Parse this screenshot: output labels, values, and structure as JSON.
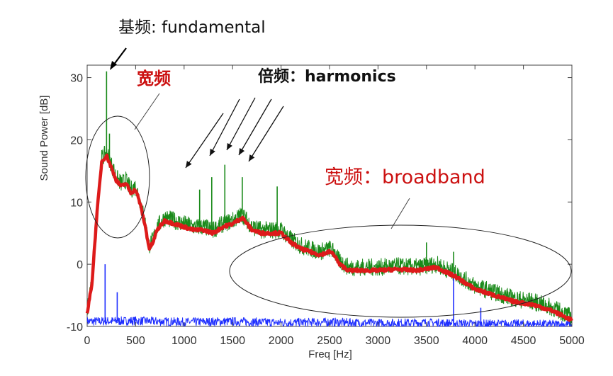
{
  "chart_data": {
    "type": "line",
    "xlabel": "Freq [Hz]",
    "ylabel": "Sound Power [dB]",
    "xlim": [
      0,
      5000
    ],
    "ylim": [
      -10,
      32
    ],
    "x_ticks": [
      0,
      500,
      1000,
      1500,
      2000,
      2500,
      3000,
      3500,
      4000,
      4500,
      5000
    ],
    "y_ticks": [
      -10,
      0,
      10,
      20,
      30
    ],
    "grid": false,
    "colors": {
      "raw": "#1a8a1a",
      "smooth": "#dd1a1a",
      "noise": "#1f2fff"
    },
    "series": [
      {
        "key": "smooth",
        "x": [
          0,
          50,
          100,
          150,
          200,
          250,
          300,
          350,
          400,
          450,
          500,
          550,
          600,
          640,
          680,
          720,
          800,
          900,
          1000,
          1100,
          1200,
          1300,
          1400,
          1500,
          1600,
          1700,
          1800,
          1900,
          2000,
          2100,
          2200,
          2300,
          2400,
          2500,
          2550,
          2600,
          2700,
          2800,
          3000,
          3200,
          3400,
          3600,
          3800,
          3900,
          4000,
          4200,
          4400,
          4600,
          4800,
          5000
        ],
        "y": [
          -8,
          -3,
          8,
          16.5,
          17.5,
          15.5,
          13.5,
          12.5,
          13,
          11.5,
          12,
          9.5,
          6,
          2.5,
          3.5,
          5.5,
          7,
          6.5,
          6,
          5.5,
          5.5,
          5,
          6,
          6.5,
          7.5,
          5.5,
          5,
          5,
          5,
          3.5,
          2.5,
          2,
          1.5,
          2,
          1.5,
          0,
          -1,
          -1,
          -1,
          -0.8,
          -1,
          -0.5,
          -2,
          -3,
          -4,
          -5,
          -6,
          -6.5,
          -7.5,
          -9
        ]
      },
      {
        "key": "raw",
        "x": [
          0,
          50,
          100,
          150,
          200,
          250,
          300,
          350,
          400,
          450,
          500,
          550,
          600,
          640,
          680,
          720,
          800,
          900,
          1000,
          1100,
          1200,
          1300,
          1400,
          1500,
          1600,
          1700,
          1800,
          1900,
          2000,
          2100,
          2200,
          2300,
          2400,
          2500,
          2550,
          2600,
          2700,
          2800,
          3000,
          3200,
          3400,
          3600,
          3800,
          3900,
          4000,
          4200,
          4400,
          4600,
          4800,
          5000
        ],
        "y": [
          -7.5,
          -2.5,
          8.5,
          17,
          18,
          16,
          14,
          13,
          13.5,
          12,
          12.5,
          10,
          6.5,
          3,
          4,
          6,
          7.5,
          7,
          6.5,
          6,
          6,
          5.5,
          6.5,
          7,
          8,
          6,
          5.5,
          5.5,
          5.5,
          4,
          3,
          2.5,
          2,
          2.5,
          2,
          0.5,
          -0.5,
          -0.5,
          -0.5,
          -0.3,
          -0.5,
          0,
          -1.5,
          -2.5,
          -3.5,
          -4.5,
          -5.5,
          -6,
          -7,
          -8.5
        ]
      },
      {
        "key": "noise",
        "x": [
          0,
          500,
          1000,
          1500,
          2000,
          2500,
          3000,
          3500,
          4000,
          4500,
          5000
        ],
        "y": [
          -9.2,
          -9.1,
          -9.3,
          -9.2,
          -9.4,
          -9.3,
          -9.5,
          -9.4,
          -9.6,
          -9.6,
          -9.7
        ]
      }
    ],
    "peaks": [
      {
        "key": "raw",
        "x": 200,
        "y": 31
      },
      {
        "key": "raw",
        "x": 230,
        "y": 21
      },
      {
        "key": "raw",
        "x": 1160,
        "y": 12
      },
      {
        "key": "raw",
        "x": 1285,
        "y": 14
      },
      {
        "key": "raw",
        "x": 1420,
        "y": 16
      },
      {
        "key": "raw",
        "x": 1600,
        "y": 14
      },
      {
        "key": "raw",
        "x": 1960,
        "y": 12.5
      },
      {
        "key": "raw",
        "x": 3500,
        "y": 3.5
      },
      {
        "key": "raw",
        "x": 3780,
        "y": 2
      },
      {
        "key": "noise",
        "x": 185,
        "y": 0
      },
      {
        "key": "noise",
        "x": 310,
        "y": -4.5
      },
      {
        "key": "noise",
        "x": 3780,
        "y": -1.5
      },
      {
        "key": "noise",
        "x": 4060,
        "y": -7
      }
    ],
    "annotations": {
      "fundamental": "基频: fundamental",
      "low_broadband": "宽频",
      "harmonics": "倍频：harmonics",
      "broadband": "宽频：broadband"
    }
  }
}
